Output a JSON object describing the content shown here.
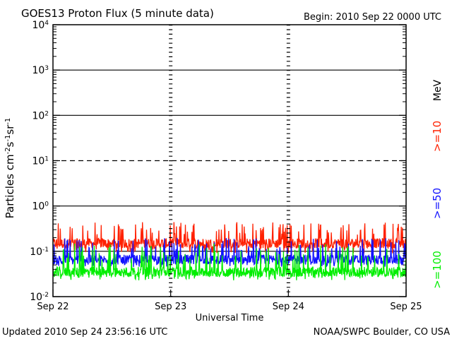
{
  "header": {
    "title": "GOES13 Proton Flux (5 minute data)",
    "begin": "Begin: 2010 Sep 22 0000 UTC"
  },
  "footer": {
    "updated": "Updated 2010 Sep 24 23:56:16 UTC",
    "source": "NOAA/SWPC Boulder, CO USA"
  },
  "legend": {
    "unit": "MeV",
    "items": [
      {
        "label": ">=10",
        "color": "#ff2000"
      },
      {
        "label": ">=50",
        "color": "#1010ff"
      },
      {
        "label": ">=100",
        "color": "#00ee00"
      }
    ]
  },
  "chart_data": {
    "type": "line",
    "title": "GOES13 Proton Flux (5 minute data)",
    "xlabel": "Universal Time",
    "ylabel": "Particles cm-2s-1sr-1",
    "yscale": "log",
    "ylim": [
      0.01,
      10000
    ],
    "xlim": [
      "2010-09-22 00:00",
      "2010-09-25 00:00"
    ],
    "x_tick_labels": [
      "Sep 22",
      "Sep 23",
      "Sep 24",
      "Sep 25"
    ],
    "y_tick_labels": [
      {
        "base": "10",
        "exp": "-2"
      },
      {
        "base": "10",
        "exp": "-1"
      },
      {
        "base": "10",
        "exp": "0"
      },
      {
        "base": "10",
        "exp": "1"
      },
      {
        "base": "10",
        "exp": "2"
      },
      {
        "base": "10",
        "exp": "3"
      },
      {
        "base": "10",
        "exp": "4"
      }
    ],
    "reference_lines": [
      {
        "value": 1000,
        "style": "solid"
      },
      {
        "value": 100,
        "style": "solid"
      },
      {
        "value": 10,
        "style": "dashed"
      },
      {
        "value": 1,
        "style": "solid"
      },
      {
        "value": 0.1,
        "style": "solid"
      }
    ],
    "series": [
      {
        "name": ">=10",
        "color": "#ff2000",
        "typical": 0.15,
        "min": 0.09,
        "max": 0.45
      },
      {
        "name": ">=50",
        "color": "#1010ff",
        "typical": 0.065,
        "min": 0.045,
        "max": 0.2
      },
      {
        "name": ">=100",
        "color": "#00ee00",
        "typical": 0.035,
        "min": 0.023,
        "max": 0.15
      }
    ],
    "grid": false
  }
}
